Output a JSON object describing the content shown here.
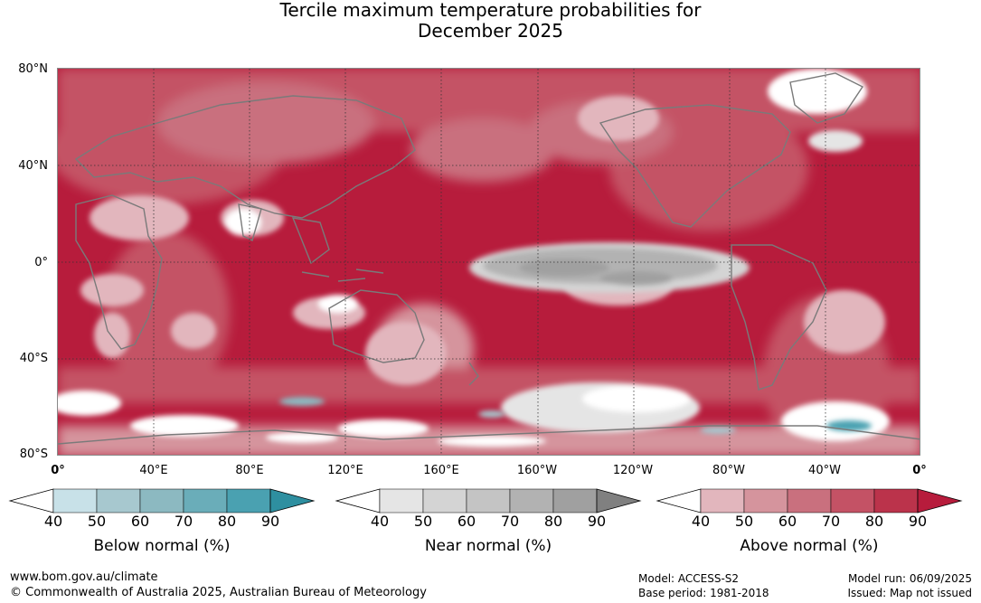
{
  "title": {
    "line1": "Tercile maximum temperature probabilities for",
    "line2": "December 2025"
  },
  "map": {
    "lat_labels": [
      "80°N",
      "40°N",
      "0°",
      "40°S",
      "80°S"
    ],
    "lon_labels": [
      "0°",
      "40°E",
      "80°E",
      "120°E",
      "160°E",
      "160°W",
      "120°W",
      "80°W",
      "40°W",
      "0°"
    ]
  },
  "colorbars": [
    {
      "title": "Below normal (%)",
      "ticks": [
        "40",
        "50",
        "60",
        "70",
        "80",
        "90"
      ],
      "colors": [
        "#ffffff",
        "#c8e1e8",
        "#a7c8cf",
        "#8cb9c1",
        "#6aadb9",
        "#4aa1b1",
        "#2e8fa0"
      ]
    },
    {
      "title": "Near normal (%)",
      "ticks": [
        "40",
        "50",
        "60",
        "70",
        "80",
        "90"
      ],
      "colors": [
        "#ffffff",
        "#e5e5e5",
        "#d4d4d4",
        "#c4c4c4",
        "#b2b2b2",
        "#a0a0a0",
        "#808080"
      ]
    },
    {
      "title": "Above normal (%)",
      "ticks": [
        "40",
        "50",
        "60",
        "70",
        "80",
        "90"
      ],
      "colors": [
        "#ffffff",
        "#e2b6bd",
        "#d5949d",
        "#c9707e",
        "#c45265",
        "#bb334b",
        "#b71c3c"
      ]
    }
  ],
  "footer": {
    "url": "www.bom.gov.au/climate",
    "copyright": "© Commonwealth of Australia 2025, Australian Bureau of Meteorology",
    "model": "Model: ACCESS-S2",
    "base_period": "Base period: 1981-2018",
    "model_run": "Model run: 06/09/2025",
    "issued": "Issued: Map not issued"
  }
}
